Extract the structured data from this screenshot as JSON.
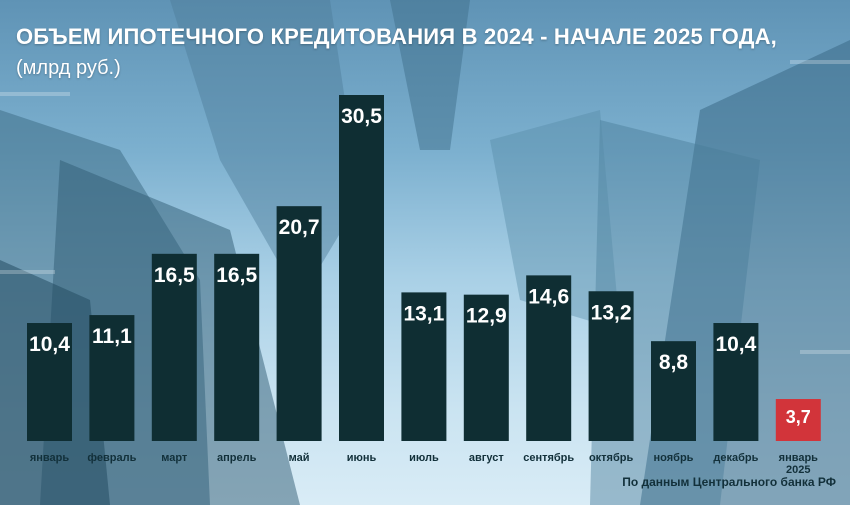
{
  "header": {
    "title": "ОБЪЕМ ИПОТЕЧНОГО КРЕДИТОВАНИЯ  В 2024 - НАЧАЛЕ 2025 ГОДА,",
    "subtitle": "(млрд руб.)"
  },
  "footer": {
    "source": "По данным Центрального банка РФ"
  },
  "colors": {
    "bar": "#0f2e33",
    "highlight": "#d2343a",
    "text": "#ffffff",
    "label": "#12303a"
  },
  "chart_data": {
    "type": "bar",
    "categories": [
      "январь",
      "февраль",
      "март",
      "апрель",
      "май",
      "июнь",
      "июль",
      "август",
      "сентябрь",
      "октябрь",
      "ноябрь",
      "декабрь",
      "январь 2025"
    ],
    "values": [
      10.4,
      11.1,
      16.5,
      16.5,
      20.7,
      30.5,
      13.1,
      12.9,
      14.6,
      13.2,
      8.8,
      10.4,
      3.7
    ],
    "value_labels": [
      "10,4",
      "11,1",
      "16,5",
      "16,5",
      "20,7",
      "30,5",
      "13,1",
      "12,9",
      "14,6",
      "13,2",
      "8,8",
      "10,4",
      "3,7"
    ],
    "highlight_index": 12,
    "ylim": [
      0,
      30.5
    ],
    "grid": false,
    "legend": "none"
  }
}
